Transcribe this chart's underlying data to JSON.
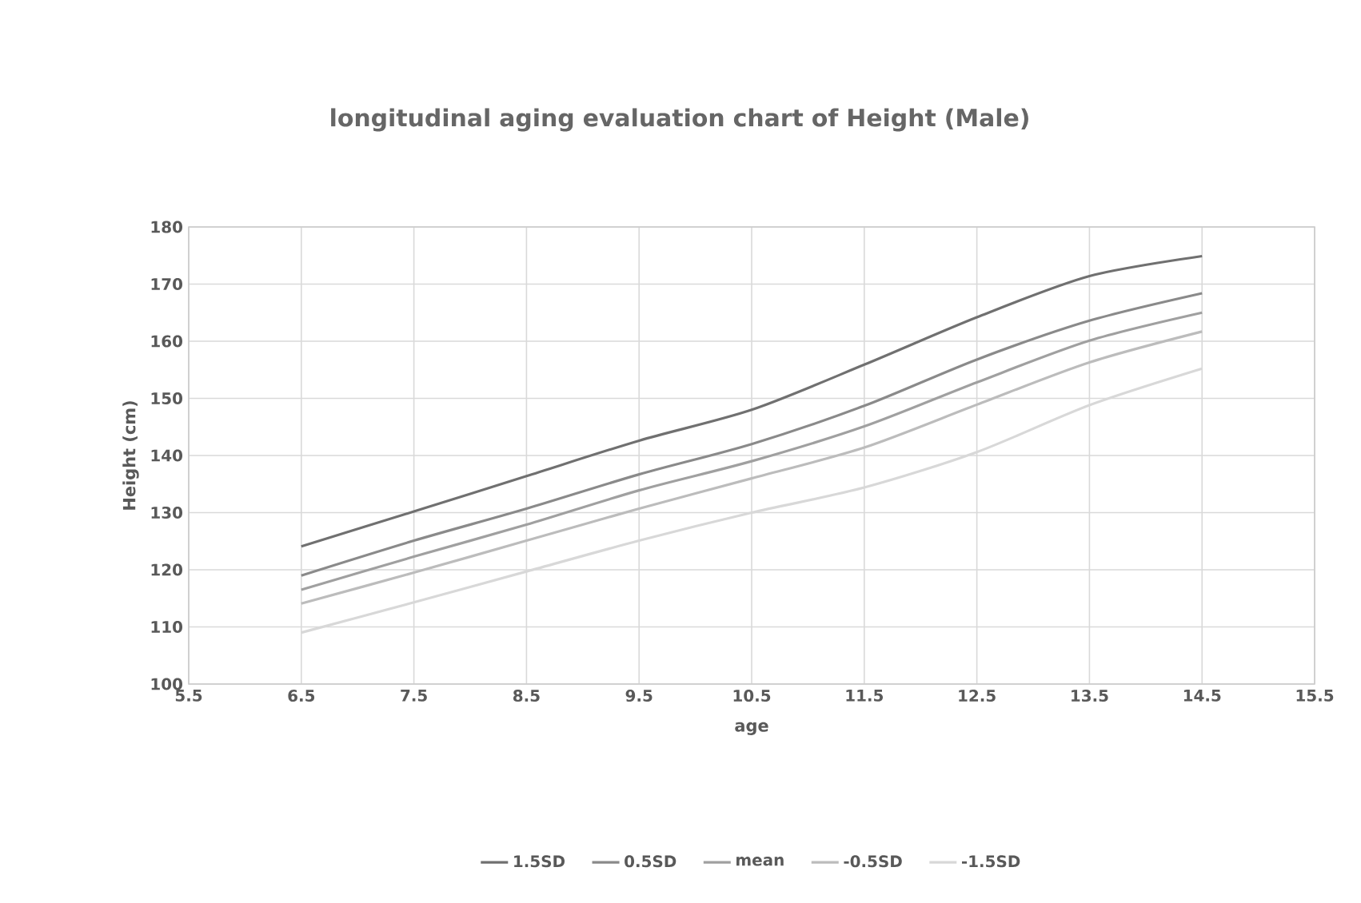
{
  "chart_data": {
    "type": "line",
    "title": "longitudinal aging evaluation chart of Height (Male)",
    "xlabel": "age",
    "ylabel": "Height (cm)",
    "x": [
      6.5,
      7.5,
      8.5,
      9.5,
      10.5,
      11.5,
      12.5,
      13.5,
      14.5
    ],
    "series": [
      {
        "name": "1.5SD",
        "color": "#707070",
        "values": [
          124.1,
          130.2,
          136.4,
          142.6,
          148.0,
          155.9,
          164.2,
          171.4,
          174.9
        ]
      },
      {
        "name": "0.5SD",
        "color": "#8a8a8a",
        "values": [
          119.0,
          125.1,
          130.7,
          136.7,
          142.0,
          148.7,
          156.8,
          163.6,
          168.4
        ]
      },
      {
        "name": "mean",
        "color": "#a0a0a0",
        "values": [
          116.5,
          122.3,
          127.9,
          133.9,
          139.0,
          145.1,
          152.8,
          160.1,
          165.0
        ]
      },
      {
        "name": "-0.5SD",
        "color": "#bcbcbc",
        "values": [
          114.1,
          119.5,
          125.1,
          130.7,
          136.0,
          141.4,
          148.9,
          156.3,
          161.7
        ]
      },
      {
        "name": "-1.5SD",
        "color": "#d8d8d8",
        "values": [
          109.0,
          114.3,
          119.7,
          125.1,
          130.0,
          134.4,
          140.6,
          148.8,
          155.2
        ]
      }
    ],
    "xlim": [
      5.5,
      15.5
    ],
    "xticks": [
      5.5,
      6.5,
      7.5,
      8.5,
      9.5,
      10.5,
      11.5,
      12.5,
      13.5,
      14.5,
      15.5
    ],
    "ylim": [
      100,
      180
    ],
    "yticks": [
      100,
      110,
      120,
      130,
      140,
      150,
      160,
      170,
      180
    ],
    "grid": true,
    "legend": "bottom",
    "marker": "none",
    "line_style": "solid"
  }
}
